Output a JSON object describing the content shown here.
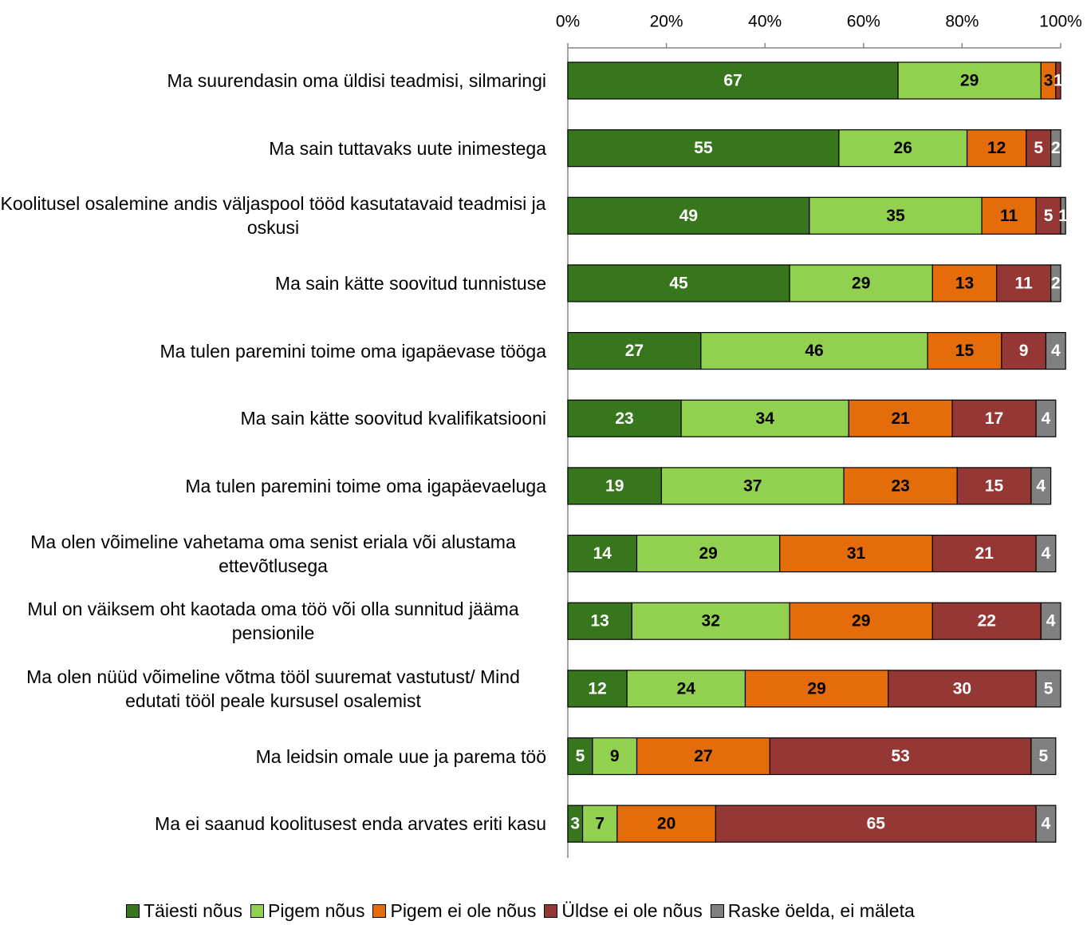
{
  "chart_data": {
    "type": "stacked_barh",
    "categories": [
      "Ma suurendasin oma üldisi teadmisi, silmaringi",
      "Ma sain tuttavaks uute inimestega",
      "Koolitusel osalemine andis väljaspool tööd kasutatavaid teadmisi ja oskusi",
      "Ma sain kätte soovitud tunnistuse",
      "Ma tulen paremini toime oma igapäevase tööga",
      "Ma sain kätte soovitud kvalifikatsiooni",
      "Ma tulen paremini toime oma igapäevaeluga",
      "Ma olen võimeline vahetama oma senist eriala või alustama ettevõtlusega",
      "Mul on väiksem oht kaotada oma töö või olla sunnitud jääma pensionile",
      "Ma olen nüüd võimeline võtma tööl suuremat vastutust/ Mind edutati tööl peale kursusel osalemist",
      "Ma leidsin omale uue ja parema töö",
      "Ma ei saanud koolitusest enda arvates eriti kasu"
    ],
    "series": [
      {
        "name": "Täiesti nõus",
        "color": "#38761d",
        "label_color": "#ffffff",
        "values": [
          67,
          55,
          49,
          45,
          27,
          23,
          19,
          14,
          13,
          12,
          5,
          3
        ]
      },
      {
        "name": "Pigem nõus",
        "color": "#92d050",
        "label_color": "#000000",
        "values": [
          29,
          26,
          35,
          29,
          46,
          34,
          37,
          29,
          32,
          24,
          9,
          7
        ]
      },
      {
        "name": "Pigem ei ole nõus",
        "color": "#e46c0a",
        "label_color": "#000000",
        "values": [
          3,
          12,
          11,
          13,
          15,
          21,
          23,
          31,
          29,
          29,
          27,
          20
        ]
      },
      {
        "name": "Üldse ei ole nõus",
        "color": "#953735",
        "label_color": "#ffffff",
        "values": [
          1,
          5,
          5,
          11,
          9,
          17,
          15,
          21,
          22,
          30,
          53,
          65
        ]
      },
      {
        "name": "Raske öelda, ei mäleta",
        "color": "#808080",
        "label_color": "#ffffff",
        "values": [
          null,
          2,
          1,
          2,
          4,
          4,
          4,
          4,
          4,
          5,
          5,
          4
        ]
      }
    ],
    "xlim": [
      0,
      100
    ],
    "xticks": [
      {
        "value": 0,
        "label": "0%"
      },
      {
        "value": 20,
        "label": "20%"
      },
      {
        "value": 40,
        "label": "40%"
      },
      {
        "value": 60,
        "label": "60%"
      },
      {
        "value": 80,
        "label": "80%"
      },
      {
        "value": 100,
        "label": "100%"
      }
    ],
    "legend": "bottom"
  }
}
